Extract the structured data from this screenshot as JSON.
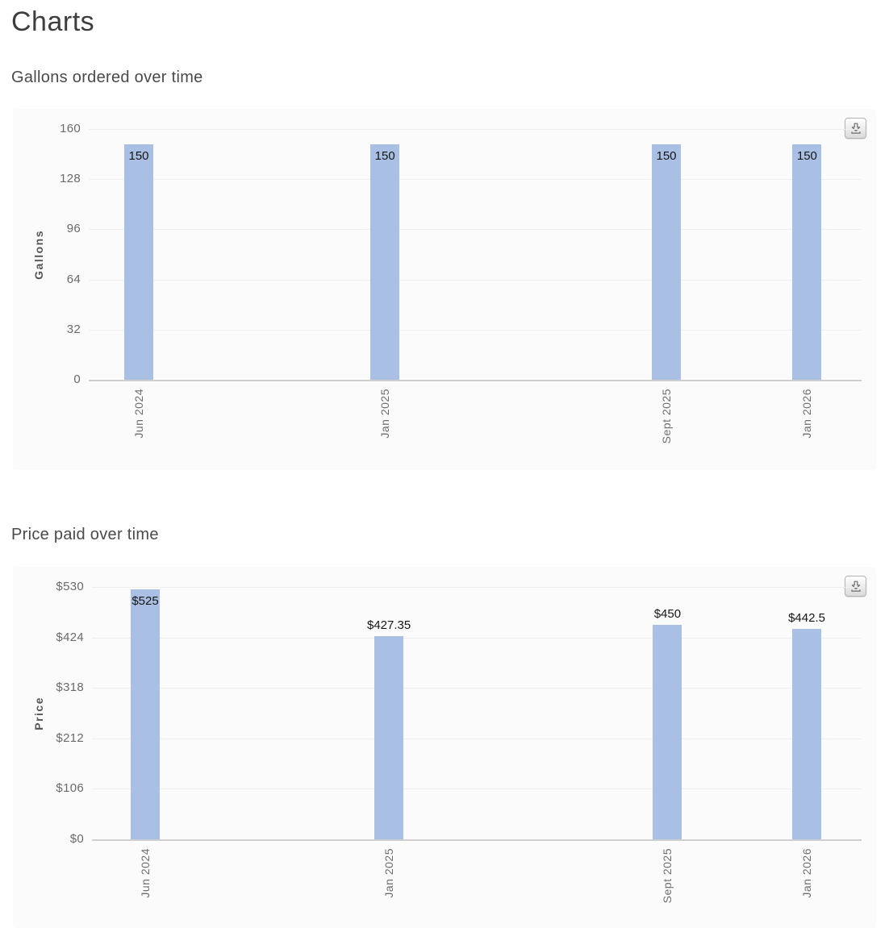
{
  "page": {
    "title": "Charts"
  },
  "icons": {
    "export": "download-icon"
  },
  "colors": {
    "bar": "#a9bfe4",
    "gridline": "#efefef",
    "axis_line": "#cfcfcf",
    "card_background": "#fbfbfb",
    "tick_text": "#6a6a6a",
    "heading_text": "#3d3d3d"
  },
  "chart_data": [
    {
      "type": "bar",
      "title": "Gallons ordered over time",
      "xlabel": "",
      "ylabel": "Gallons",
      "categories": [
        "Jun 2024",
        "Jan 2025",
        "Sept 2025",
        "Jan 2026"
      ],
      "month_offsets": [
        0,
        7,
        15,
        19
      ],
      "values": [
        150,
        150,
        150,
        150
      ],
      "value_labels": [
        "150",
        "150",
        "150",
        "150"
      ],
      "y_tick_labels": [
        "160",
        "128",
        "96",
        "64",
        "32",
        "0"
      ],
      "y_tick_values": [
        160,
        128,
        96,
        64,
        32,
        0
      ],
      "ylim": [
        0,
        160
      ],
      "grid": true,
      "legend": false
    },
    {
      "type": "bar",
      "title": "Price paid over time",
      "xlabel": "",
      "ylabel": "Price",
      "categories": [
        "Jun 2024",
        "Jan 2025",
        "Sept 2025",
        "Jan 2026"
      ],
      "month_offsets": [
        0,
        7,
        15,
        19
      ],
      "values": [
        525,
        427.35,
        450,
        442.5
      ],
      "value_labels": [
        "$525",
        "$427.35",
        "$450",
        "$442.5"
      ],
      "y_tick_labels": [
        "$530",
        "$424",
        "$318",
        "$212",
        "$106",
        "$0"
      ],
      "y_tick_values": [
        530,
        424,
        318,
        212,
        106,
        0
      ],
      "ylim": [
        0,
        530
      ],
      "grid": true,
      "legend": false
    }
  ]
}
